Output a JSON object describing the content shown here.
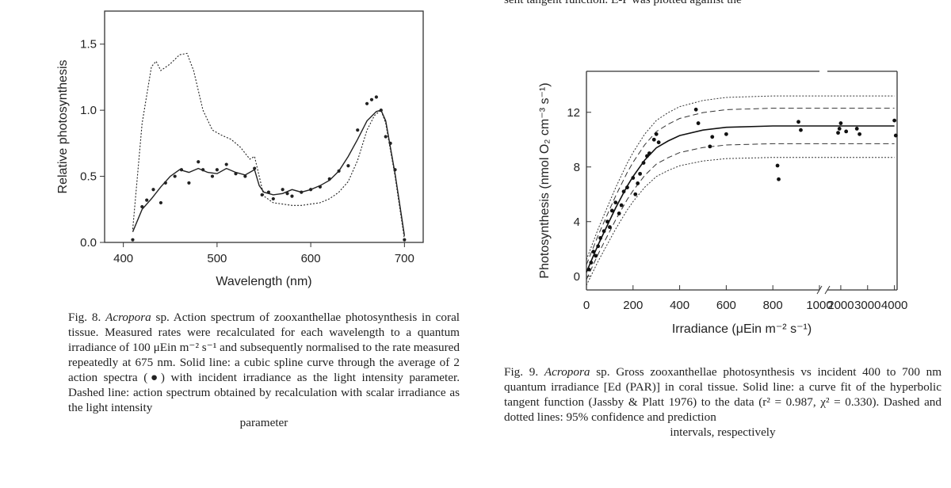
{
  "top_fragment": "sent tangent function. E-P was plotted against the",
  "chart_data": [
    {
      "type": "line",
      "figure": "Fig. 8",
      "xlabel": "Wavelength (nm)",
      "ylabel": "Relative photosynthesis",
      "xlim": [
        380,
        720
      ],
      "ylim": [
        0,
        1.75
      ],
      "xticks": [
        400,
        500,
        600,
        700
      ],
      "yticks": [
        0.0,
        0.5,
        1.0,
        1.5
      ],
      "ytick_labels": [
        "0.0",
        "0.5",
        "1.0",
        "1.5"
      ],
      "series": [
        {
          "style": "solid",
          "x": [
            410,
            420,
            430,
            440,
            450,
            460,
            470,
            480,
            490,
            500,
            510,
            520,
            530,
            540,
            545,
            550,
            560,
            570,
            580,
            590,
            600,
            610,
            620,
            630,
            640,
            650,
            660,
            670,
            675,
            680,
            690,
            700
          ],
          "y": [
            0.08,
            0.25,
            0.33,
            0.42,
            0.5,
            0.55,
            0.53,
            0.56,
            0.53,
            0.52,
            0.56,
            0.53,
            0.51,
            0.55,
            0.43,
            0.38,
            0.36,
            0.37,
            0.4,
            0.38,
            0.4,
            0.43,
            0.47,
            0.54,
            0.65,
            0.78,
            0.92,
            0.99,
            1.0,
            0.92,
            0.52,
            0.05
          ]
        },
        {
          "style": "dotted",
          "x": [
            410,
            420,
            430,
            435,
            440,
            450,
            460,
            468,
            475,
            485,
            495,
            505,
            515,
            525,
            535,
            540,
            545,
            550,
            560,
            570,
            580,
            590,
            600,
            610,
            620,
            630,
            640,
            650,
            660,
            668,
            675,
            680,
            690,
            700
          ],
          "y": [
            0.1,
            0.9,
            1.33,
            1.37,
            1.3,
            1.35,
            1.42,
            1.43,
            1.3,
            1.0,
            0.85,
            0.81,
            0.78,
            0.72,
            0.63,
            0.65,
            0.5,
            0.35,
            0.3,
            0.29,
            0.28,
            0.28,
            0.29,
            0.3,
            0.33,
            0.38,
            0.46,
            0.62,
            0.85,
            0.96,
            1.0,
            0.9,
            0.5,
            0.02
          ]
        },
        {
          "style": "points",
          "x": [
            410,
            420,
            425,
            432,
            440,
            445,
            455,
            462,
            470,
            480,
            485,
            495,
            500,
            510,
            520,
            530,
            540,
            548,
            555,
            560,
            570,
            575,
            580,
            590,
            600,
            610,
            620,
            630,
            640,
            650,
            660,
            665,
            670,
            675,
            680,
            685,
            690,
            700
          ],
          "y": [
            0.02,
            0.27,
            0.32,
            0.4,
            0.3,
            0.45,
            0.5,
            0.55,
            0.45,
            0.61,
            0.55,
            0.5,
            0.55,
            0.59,
            0.52,
            0.5,
            0.56,
            0.36,
            0.38,
            0.33,
            0.4,
            0.37,
            0.35,
            0.38,
            0.4,
            0.42,
            0.48,
            0.54,
            0.58,
            0.85,
            1.05,
            1.08,
            1.1,
            1.0,
            0.8,
            0.75,
            0.55,
            0.02
          ]
        }
      ]
    },
    {
      "type": "line",
      "figure": "Fig. 9",
      "xlabel": "Irradiance (μEin m⁻² s⁻¹)",
      "ylabel": "Photosynthesis (nmol O₂ cm⁻³ s⁻¹)",
      "xticks_left": [
        "0",
        "200",
        "400",
        "600",
        "800",
        "1000"
      ],
      "xticks_right": [
        "2000",
        "3000",
        "4000"
      ],
      "yticks": [
        "0",
        "4",
        "8",
        "12"
      ],
      "ylim": [
        -1,
        15
      ],
      "series": [
        {
          "style": "fit",
          "x": [
            0,
            25,
            50,
            75,
            100,
            125,
            150,
            175,
            200,
            250,
            300,
            350,
            400,
            500,
            600,
            800,
            1000,
            2000,
            3000,
            4000
          ],
          "y": [
            0.3,
            1.3,
            2.3,
            3.2,
            4.1,
            5.0,
            5.8,
            6.6,
            7.3,
            8.5,
            9.4,
            9.9,
            10.3,
            10.7,
            10.9,
            11.0,
            11.0,
            11.0,
            11.0,
            11.0
          ]
        },
        {
          "style": "points",
          "x": [
            10,
            20,
            30,
            40,
            50,
            60,
            75,
            90,
            100,
            110,
            125,
            140,
            150,
            160,
            175,
            200,
            210,
            220,
            230,
            245,
            260,
            270,
            290,
            300,
            310,
            470,
            480,
            530,
            540,
            600,
            820,
            825,
            910,
            920,
            1900,
            1950,
            2000,
            2200,
            2600,
            2700,
            4000,
            4050
          ],
          "y": [
            0.5,
            1.0,
            1.8,
            1.5,
            2.2,
            2.8,
            3.3,
            4.0,
            3.6,
            4.8,
            5.4,
            4.6,
            5.2,
            6.2,
            6.5,
            7.2,
            6.0,
            6.8,
            7.5,
            8.3,
            8.8,
            9.0,
            10.0,
            10.4,
            9.8,
            12.2,
            11.2,
            9.5,
            10.2,
            10.4,
            8.1,
            7.1,
            11.3,
            10.7,
            10.5,
            10.8,
            11.2,
            10.6,
            10.8,
            10.4,
            11.4,
            10.3
          ]
        }
      ]
    }
  ],
  "caption8": {
    "fig": "Fig. 8.",
    "genus": "Acropora",
    "text": "sp. Action spectrum of zooxanthellae photosynthesis in coral tissue. Measured rates were recalculated for each wavelength to a quantum irradiance of 100 μEin m⁻² s⁻¹ and subsequently normalised to the rate measured repeatedly at 675 nm. Solid line: a cubic spline curve through the average of 2 action spectra (●) with incident irradiance as the light intensity parameter. Dashed line: action spectrum obtained by recalculation with scalar irradiance as the light intensity",
    "last": "parameter"
  },
  "caption9": {
    "fig": "Fig. 9.",
    "genus": "Acropora",
    "text": "sp. Gross zooxanthellae photosynthesis vs incident 400 to 700 nm quantum irradiance [Ed (PAR)] in coral tissue. Solid line: a curve fit of the hyperbolic tangent function (Jassby & Platt 1976) to the data (r² = 0.987, χ² = 0.330). Dashed and dotted lines: 95% confidence and prediction",
    "last": "intervals, respectively"
  }
}
